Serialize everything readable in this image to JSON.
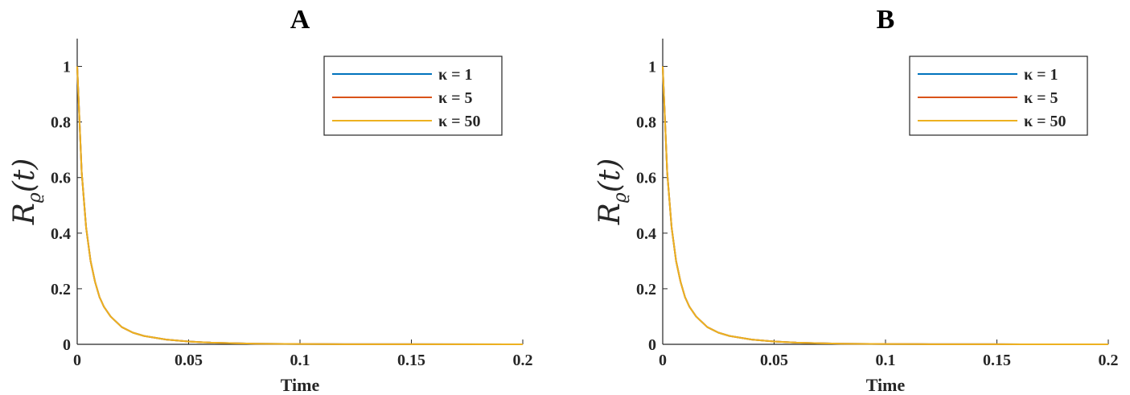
{
  "chart_data": [
    {
      "type": "line",
      "title": "A",
      "xlabel": "Time",
      "ylabel": {
        "base": "R",
        "subscript": "ϱ",
        "argument": "(t)"
      },
      "xlim": [
        0,
        0.2
      ],
      "ylim": [
        0,
        1.1
      ],
      "xticks": [
        "0",
        "0.05",
        "0.1",
        "0.15",
        "0.2"
      ],
      "yticks": [
        "0",
        "0.2",
        "0.4",
        "0.6",
        "0.8",
        "1"
      ],
      "grid": false,
      "legend_position": "top-right",
      "x": [
        0,
        0.002,
        0.004,
        0.006,
        0.008,
        0.01,
        0.012,
        0.015,
        0.02,
        0.025,
        0.03,
        0.04,
        0.05,
        0.06,
        0.07,
        0.08,
        0.1,
        0.12,
        0.15,
        0.2
      ],
      "series": [
        {
          "name": "κ = 1",
          "color": "#0072BD",
          "values": [
            1.0,
            0.62,
            0.42,
            0.3,
            0.225,
            0.17,
            0.135,
            0.1,
            0.062,
            0.042,
            0.03,
            0.017,
            0.01,
            0.006,
            0.004,
            0.002,
            0.001,
            0.0005,
            0.0002,
            0.0
          ]
        },
        {
          "name": "κ = 5",
          "color": "#D95319",
          "values": [
            1.0,
            0.62,
            0.42,
            0.3,
            0.225,
            0.17,
            0.135,
            0.1,
            0.062,
            0.042,
            0.03,
            0.017,
            0.01,
            0.006,
            0.004,
            0.002,
            0.001,
            0.0005,
            0.0002,
            0.0
          ]
        },
        {
          "name": "κ = 50",
          "color": "#EDB120",
          "values": [
            1.0,
            0.62,
            0.42,
            0.3,
            0.225,
            0.17,
            0.135,
            0.1,
            0.062,
            0.042,
            0.03,
            0.017,
            0.01,
            0.006,
            0.004,
            0.002,
            0.001,
            0.0005,
            0.0002,
            0.0
          ]
        }
      ]
    },
    {
      "type": "line",
      "title": "B",
      "xlabel": "Time",
      "ylabel": {
        "base": "R",
        "subscript": "ϱ",
        "argument": "(t)"
      },
      "xlim": [
        0,
        0.2
      ],
      "ylim": [
        0,
        1.1
      ],
      "xticks": [
        "0",
        "0.05",
        "0.1",
        "0.15",
        "0.2"
      ],
      "yticks": [
        "0",
        "0.2",
        "0.4",
        "0.6",
        "0.8",
        "1"
      ],
      "grid": false,
      "legend_position": "top-right",
      "x": [
        0,
        0.002,
        0.004,
        0.006,
        0.008,
        0.01,
        0.012,
        0.015,
        0.02,
        0.025,
        0.03,
        0.04,
        0.05,
        0.06,
        0.07,
        0.08,
        0.1,
        0.12,
        0.15,
        0.2
      ],
      "series": [
        {
          "name": "κ = 1",
          "color": "#0072BD",
          "values": [
            1.0,
            0.62,
            0.42,
            0.3,
            0.225,
            0.17,
            0.135,
            0.1,
            0.062,
            0.042,
            0.03,
            0.017,
            0.01,
            0.006,
            0.004,
            0.002,
            0.001,
            0.0005,
            0.0002,
            0.0
          ]
        },
        {
          "name": "κ = 5",
          "color": "#D95319",
          "values": [
            1.0,
            0.62,
            0.42,
            0.3,
            0.225,
            0.17,
            0.135,
            0.1,
            0.062,
            0.042,
            0.03,
            0.017,
            0.01,
            0.006,
            0.004,
            0.002,
            0.001,
            0.0005,
            0.0002,
            0.0
          ]
        },
        {
          "name": "κ = 50",
          "color": "#EDB120",
          "values": [
            1.0,
            0.62,
            0.42,
            0.3,
            0.225,
            0.17,
            0.135,
            0.1,
            0.062,
            0.042,
            0.03,
            0.017,
            0.01,
            0.006,
            0.004,
            0.002,
            0.001,
            0.0005,
            0.0002,
            0.0
          ]
        }
      ]
    }
  ]
}
